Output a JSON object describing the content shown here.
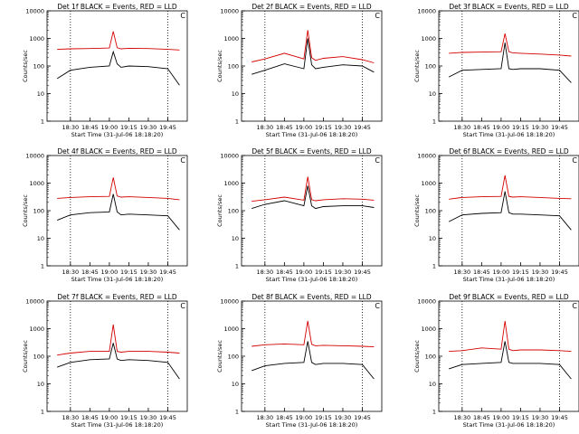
{
  "colors": {
    "events": "#000000",
    "lld": "#d40000",
    "axis": "#000000",
    "markers": "#000000"
  },
  "common": {
    "xlabel": "Start Time (31-Jul-06 18:18:20)",
    "ylabel": "Counts/sec",
    "yticks": [
      "1",
      "10",
      "100",
      "1000",
      "10000"
    ],
    "corner_mark": "C"
  },
  "chart_data": [
    {
      "type": "line",
      "title": "Det 1f  BLACK = Events, RED = LLD",
      "xticks": [
        "18:30",
        "18:45",
        "19:00",
        "19:15",
        "19:30",
        "19:45"
      ],
      "ylim": [
        1,
        10000
      ],
      "yscale": "log",
      "grid": false,
      "legend": "none",
      "series": [
        {
          "x": [
            18.33,
            18.5,
            18.75,
            19.0,
            19.05,
            19.1,
            19.15,
            19.25,
            19.5,
            19.75,
            19.9
          ],
          "y": [
            35,
            70,
            90,
            100,
            330,
            120,
            90,
            100,
            95,
            80,
            20
          ]
        },
        {
          "x": [
            18.33,
            18.5,
            18.75,
            19.0,
            19.05,
            19.1,
            19.15,
            19.25,
            19.5,
            19.75,
            19.9
          ],
          "y": [
            400,
            420,
            430,
            450,
            1800,
            460,
            420,
            440,
            430,
            400,
            380
          ]
        }
      ]
    },
    {
      "type": "line",
      "title": "Det 2f  BLACK = Events, RED = LLD",
      "xticks": [
        "18:30",
        "18:45",
        "19:00",
        "19:15",
        "19:30",
        "19:45"
      ],
      "ylim": [
        1,
        10000
      ],
      "yscale": "log",
      "grid": false,
      "legend": "none",
      "series": [
        {
          "x": [
            18.33,
            18.5,
            18.75,
            19.0,
            19.05,
            19.1,
            19.15,
            19.25,
            19.5,
            19.75,
            19.9
          ],
          "y": [
            50,
            70,
            120,
            80,
            1000,
            110,
            80,
            90,
            110,
            100,
            60
          ]
        },
        {
          "x": [
            18.33,
            18.5,
            18.75,
            19.0,
            19.05,
            19.1,
            19.15,
            19.25,
            19.5,
            19.75,
            19.9
          ],
          "y": [
            140,
            180,
            290,
            180,
            2000,
            200,
            160,
            190,
            220,
            170,
            130
          ]
        }
      ]
    },
    {
      "type": "line",
      "title": "Det 3f  BLACK = Events, RED = LLD",
      "xticks": [
        "18:30",
        "18:45",
        "19:00",
        "19:15",
        "19:30",
        "19:45"
      ],
      "ylim": [
        1,
        10000
      ],
      "yscale": "log",
      "grid": false,
      "legend": "none",
      "series": [
        {
          "x": [
            18.33,
            18.5,
            18.75,
            19.0,
            19.05,
            19.1,
            19.15,
            19.25,
            19.5,
            19.75,
            19.9
          ],
          "y": [
            40,
            70,
            75,
            80,
            700,
            80,
            75,
            80,
            80,
            70,
            25
          ]
        },
        {
          "x": [
            18.33,
            18.5,
            18.75,
            19.0,
            19.05,
            19.1,
            19.15,
            19.25,
            19.5,
            19.75,
            19.9
          ],
          "y": [
            290,
            310,
            320,
            330,
            1500,
            330,
            300,
            290,
            270,
            250,
            230
          ]
        }
      ]
    },
    {
      "type": "line",
      "title": "Det 4f  BLACK = Events, RED = LLD",
      "xticks": [
        "18:30",
        "18:45",
        "19:00",
        "19:15",
        "19:30",
        "19:45"
      ],
      "ylim": [
        1,
        10000
      ],
      "yscale": "log",
      "grid": false,
      "legend": "none",
      "series": [
        {
          "x": [
            18.33,
            18.5,
            18.75,
            19.0,
            19.05,
            19.1,
            19.15,
            19.25,
            19.5,
            19.75,
            19.9
          ],
          "y": [
            45,
            70,
            85,
            90,
            400,
            90,
            70,
            75,
            70,
            65,
            20
          ]
        },
        {
          "x": [
            18.33,
            18.5,
            18.75,
            19.0,
            19.05,
            19.1,
            19.15,
            19.25,
            19.5,
            19.75,
            19.9
          ],
          "y": [
            280,
            300,
            320,
            330,
            1600,
            340,
            310,
            320,
            300,
            280,
            250
          ]
        }
      ]
    },
    {
      "type": "line",
      "title": "Det 5f  BLACK = Events, RED = LLD",
      "xticks": [
        "18:30",
        "18:45",
        "19:00",
        "19:15",
        "19:30",
        "19:45"
      ],
      "ylim": [
        1,
        10000
      ],
      "yscale": "log",
      "grid": false,
      "legend": "none",
      "series": [
        {
          "x": [
            18.33,
            18.5,
            18.75,
            19.0,
            19.05,
            19.1,
            19.15,
            19.25,
            19.5,
            19.75,
            19.9
          ],
          "y": [
            120,
            170,
            230,
            150,
            800,
            150,
            120,
            140,
            150,
            150,
            130
          ]
        },
        {
          "x": [
            18.33,
            18.5,
            18.75,
            19.0,
            19.05,
            19.1,
            19.15,
            19.25,
            19.5,
            19.75,
            19.9
          ],
          "y": [
            220,
            250,
            310,
            240,
            1700,
            250,
            230,
            250,
            270,
            260,
            240
          ]
        }
      ]
    },
    {
      "type": "line",
      "title": "Det 6f  BLACK = Events, RED = LLD",
      "xticks": [
        "18:30",
        "18:45",
        "19:00",
        "19:15",
        "19:30",
        "19:45"
      ],
      "ylim": [
        1,
        10000
      ],
      "yscale": "log",
      "grid": false,
      "legend": "none",
      "series": [
        {
          "x": [
            18.33,
            18.5,
            18.75,
            19.0,
            19.05,
            19.1,
            19.15,
            19.25,
            19.5,
            19.75,
            19.9
          ],
          "y": [
            40,
            70,
            80,
            85,
            500,
            85,
            75,
            75,
            70,
            65,
            20
          ]
        },
        {
          "x": [
            18.33,
            18.5,
            18.75,
            19.0,
            19.05,
            19.1,
            19.15,
            19.25,
            19.5,
            19.75,
            19.9
          ],
          "y": [
            260,
            300,
            320,
            330,
            1900,
            330,
            310,
            320,
            300,
            280,
            270
          ]
        }
      ]
    },
    {
      "type": "line",
      "title": "Det 7f  BLACK = Events, RED = LLD",
      "xticks": [
        "18:30",
        "18:45",
        "19:00",
        "19:15",
        "19:30",
        "19:45"
      ],
      "ylim": [
        1,
        10000
      ],
      "yscale": "log",
      "grid": false,
      "legend": "none",
      "series": [
        {
          "x": [
            18.33,
            18.5,
            18.75,
            19.0,
            19.05,
            19.1,
            19.15,
            19.25,
            19.5,
            19.75,
            19.9
          ],
          "y": [
            40,
            60,
            75,
            80,
            300,
            80,
            70,
            75,
            70,
            60,
            15
          ]
        },
        {
          "x": [
            18.33,
            18.5,
            18.75,
            19.0,
            19.05,
            19.1,
            19.15,
            19.25,
            19.5,
            19.75,
            19.9
          ],
          "y": [
            110,
            130,
            150,
            150,
            1400,
            150,
            140,
            150,
            150,
            140,
            130
          ]
        }
      ]
    },
    {
      "type": "line",
      "title": "Det 8f  BLACK = Events, RED = LLD",
      "xticks": [
        "18:30",
        "18:45",
        "19:00",
        "19:15",
        "19:30",
        "19:45"
      ],
      "ylim": [
        1,
        10000
      ],
      "yscale": "log",
      "grid": false,
      "legend": "none",
      "series": [
        {
          "x": [
            18.33,
            18.5,
            18.75,
            19.0,
            19.05,
            19.1,
            19.15,
            19.25,
            19.5,
            19.75,
            19.9
          ],
          "y": [
            30,
            45,
            55,
            60,
            350,
            60,
            50,
            55,
            55,
            50,
            15
          ]
        },
        {
          "x": [
            18.33,
            18.5,
            18.75,
            19.0,
            19.05,
            19.1,
            19.15,
            19.25,
            19.5,
            19.75,
            19.9
          ],
          "y": [
            230,
            260,
            280,
            260,
            1900,
            270,
            240,
            250,
            240,
            230,
            220
          ]
        }
      ]
    },
    {
      "type": "line",
      "title": "Det 9f  BLACK = Events, RED = LLD",
      "xticks": [
        "18:30",
        "18:45",
        "19:00",
        "19:15",
        "19:30",
        "19:45"
      ],
      "ylim": [
        1,
        10000
      ],
      "yscale": "log",
      "grid": false,
      "legend": "none",
      "series": [
        {
          "x": [
            18.33,
            18.5,
            18.75,
            19.0,
            19.05,
            19.1,
            19.15,
            19.25,
            19.5,
            19.75,
            19.9
          ],
          "y": [
            35,
            50,
            55,
            60,
            350,
            60,
            55,
            55,
            55,
            50,
            15
          ]
        },
        {
          "x": [
            18.33,
            18.5,
            18.75,
            19.0,
            19.05,
            19.1,
            19.15,
            19.25,
            19.5,
            19.75,
            19.9
          ],
          "y": [
            150,
            160,
            200,
            180,
            1900,
            180,
            160,
            170,
            170,
            160,
            150
          ]
        }
      ]
    }
  ]
}
